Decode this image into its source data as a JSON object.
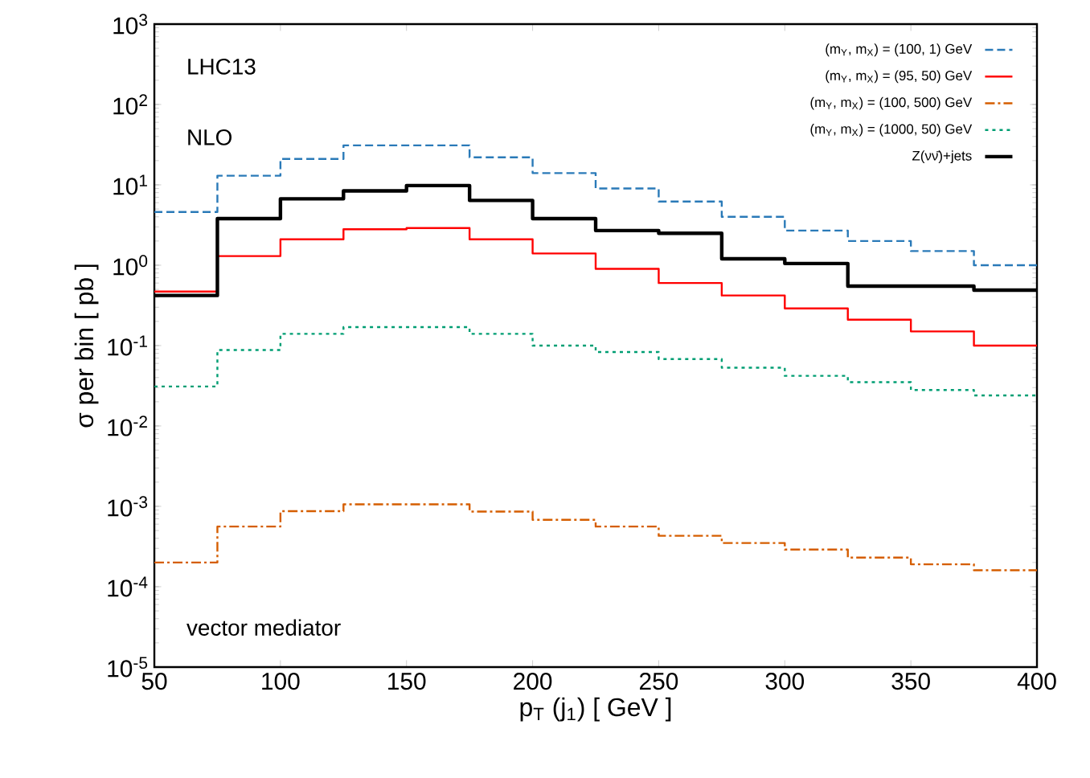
{
  "chart_data": {
    "type": "histogram",
    "bins": [
      50,
      75,
      100,
      125,
      150,
      175,
      200,
      225,
      250,
      275,
      300,
      325,
      350,
      375,
      400
    ],
    "series": [
      {
        "name": "(m$_{Y}$, m$_{X}$) = (100, 1) GeV",
        "color": "#2a7ab8",
        "line_style": "dashed",
        "values": [
          4.6,
          13,
          21,
          31,
          31,
          22,
          14,
          9,
          6.2,
          4,
          2.7,
          2,
          1.5,
          1.0
        ]
      },
      {
        "name": "(m$_{Y}$, m$_{X}$) = (95, 50) GeV",
        "color": "#ff0000",
        "line_style": "solid",
        "values": [
          0.47,
          1.3,
          2.1,
          2.8,
          2.9,
          2.1,
          1.4,
          0.9,
          0.6,
          0.42,
          0.29,
          0.21,
          0.15,
          0.1
        ]
      },
      {
        "name": "(m$_{Y}$, m$_{X}$) = (100, 500) GeV",
        "color": "#d55e00",
        "line_style": "dashdot",
        "values": [
          0.0002,
          0.00056,
          0.00087,
          0.00106,
          0.00106,
          0.00086,
          0.00068,
          0.00056,
          0.00043,
          0.00035,
          0.00029,
          0.00023,
          0.00019,
          0.00016
        ]
      },
      {
        "name": "(m$_{Y}$, m$_{X}$) = (1000, 50) GeV",
        "color": "#009e73",
        "line_style": "dotted",
        "values": [
          0.031,
          0.088,
          0.14,
          0.17,
          0.17,
          0.14,
          0.1,
          0.083,
          0.068,
          0.053,
          0.042,
          0.035,
          0.028,
          0.024
        ]
      },
      {
        "name": "Z(νν̄)+jets",
        "color": "#000000",
        "line_style": "solid",
        "values": [
          0.42,
          3.8,
          6.7,
          8.4,
          9.8,
          6.4,
          3.8,
          2.7,
          2.5,
          1.2,
          1.05,
          0.55,
          0.55,
          0.49
        ]
      }
    ],
    "xlabel": "p$_{T}$ (j$_{1}$) [ GeV ]",
    "ylabel": "σ per bin [ pb ]",
    "annotations": [
      "LHC13",
      "NLO",
      "vector mediator"
    ],
    "xlim": [
      50,
      400
    ],
    "ylim": [
      1e-05,
      1000
    ],
    "xticks": [
      50,
      100,
      150,
      200,
      250,
      300,
      350,
      400
    ],
    "yticks": [
      {
        "value": 1e-05,
        "label": "10$^{-5}$"
      },
      {
        "value": 0.0001,
        "label": "10$^{-4}$"
      },
      {
        "value": 0.001,
        "label": "10$^{-3}$"
      },
      {
        "value": 0.01,
        "label": "10$^{-2}$"
      },
      {
        "value": 0.1,
        "label": "10$^{-1}$"
      },
      {
        "value": 1,
        "label": "10$^{0}$"
      },
      {
        "value": 10,
        "label": "10$^{1}$"
      },
      {
        "value": 100,
        "label": "10$^{2}$"
      },
      {
        "value": 1000,
        "label": "10$^{3}$"
      }
    ],
    "log": "y",
    "grid": false,
    "legend": "top right"
  }
}
